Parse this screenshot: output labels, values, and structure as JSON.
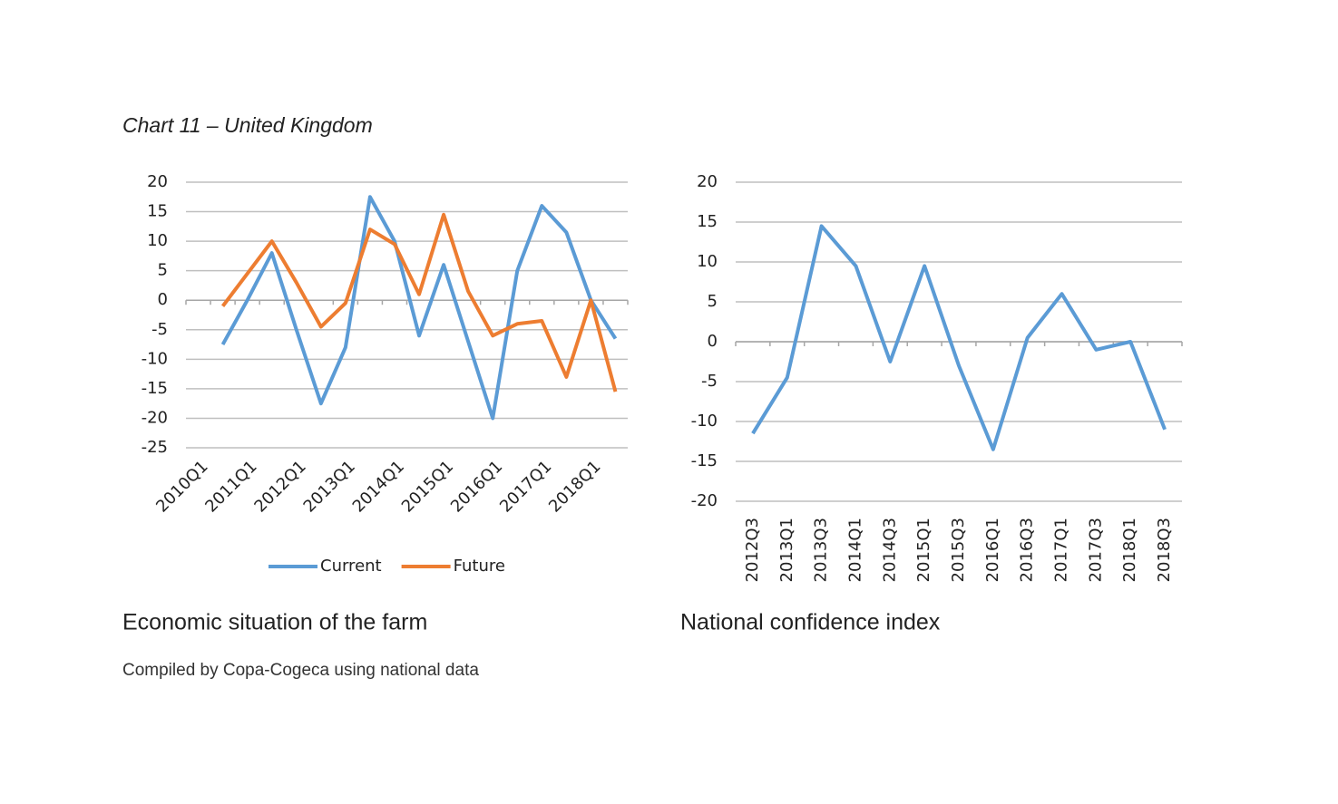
{
  "heading": "Chart 11 – United Kingdom",
  "source": "Compiled by Copa-Cogeca using national data",
  "chart_data": [
    {
      "type": "line",
      "title": "Economic situation of the farm",
      "categories": [
        "2010Q1",
        null,
        "2011Q1",
        null,
        "2012Q1",
        null,
        "2013Q1",
        null,
        "2014Q1",
        null,
        "2015Q1",
        null,
        "2016Q1",
        null,
        "2017Q1",
        null,
        "2018Q1",
        null
      ],
      "series": [
        {
          "name": "Current",
          "color": "#5b9bd5",
          "values": [
            null,
            -7.5,
            0,
            8,
            -5,
            -17.5,
            -8,
            17.5,
            10,
            -6,
            6,
            -7,
            -20,
            5,
            16,
            11.5,
            0,
            -6.5
          ]
        },
        {
          "name": "Future",
          "color": "#ed7d31",
          "values": [
            null,
            -1,
            4.5,
            10,
            3,
            -4.5,
            -0.5,
            12,
            9.5,
            1,
            14.5,
            1.5,
            -6,
            -4,
            -3.5,
            -13,
            0,
            -15.5
          ]
        }
      ],
      "ylim": [
        -25,
        20
      ],
      "yticks": [
        -25,
        -20,
        -15,
        -10,
        -5,
        0,
        5,
        10,
        15,
        20
      ],
      "grid": true,
      "legend": "bottom"
    },
    {
      "type": "line",
      "title": "National confidence index",
      "categories": [
        "2012Q3",
        "2013Q1",
        "2013Q3",
        "2014Q1",
        "2014Q3",
        "2015Q1",
        "2015Q3",
        "2016Q1",
        "2016Q3",
        "2017Q1",
        "2017Q3",
        "2018Q1",
        "2018Q3"
      ],
      "series": [
        {
          "color": "#5b9bd5",
          "values": [
            -11.5,
            -4.5,
            14.5,
            9.5,
            -2.5,
            9.5,
            -3,
            -13.5,
            0.5,
            6,
            -1,
            0,
            -11
          ]
        }
      ],
      "ylim": [
        -20,
        20
      ],
      "yticks": [
        -20,
        -15,
        -10,
        -5,
        0,
        5,
        10,
        15,
        20
      ],
      "grid": true
    }
  ]
}
